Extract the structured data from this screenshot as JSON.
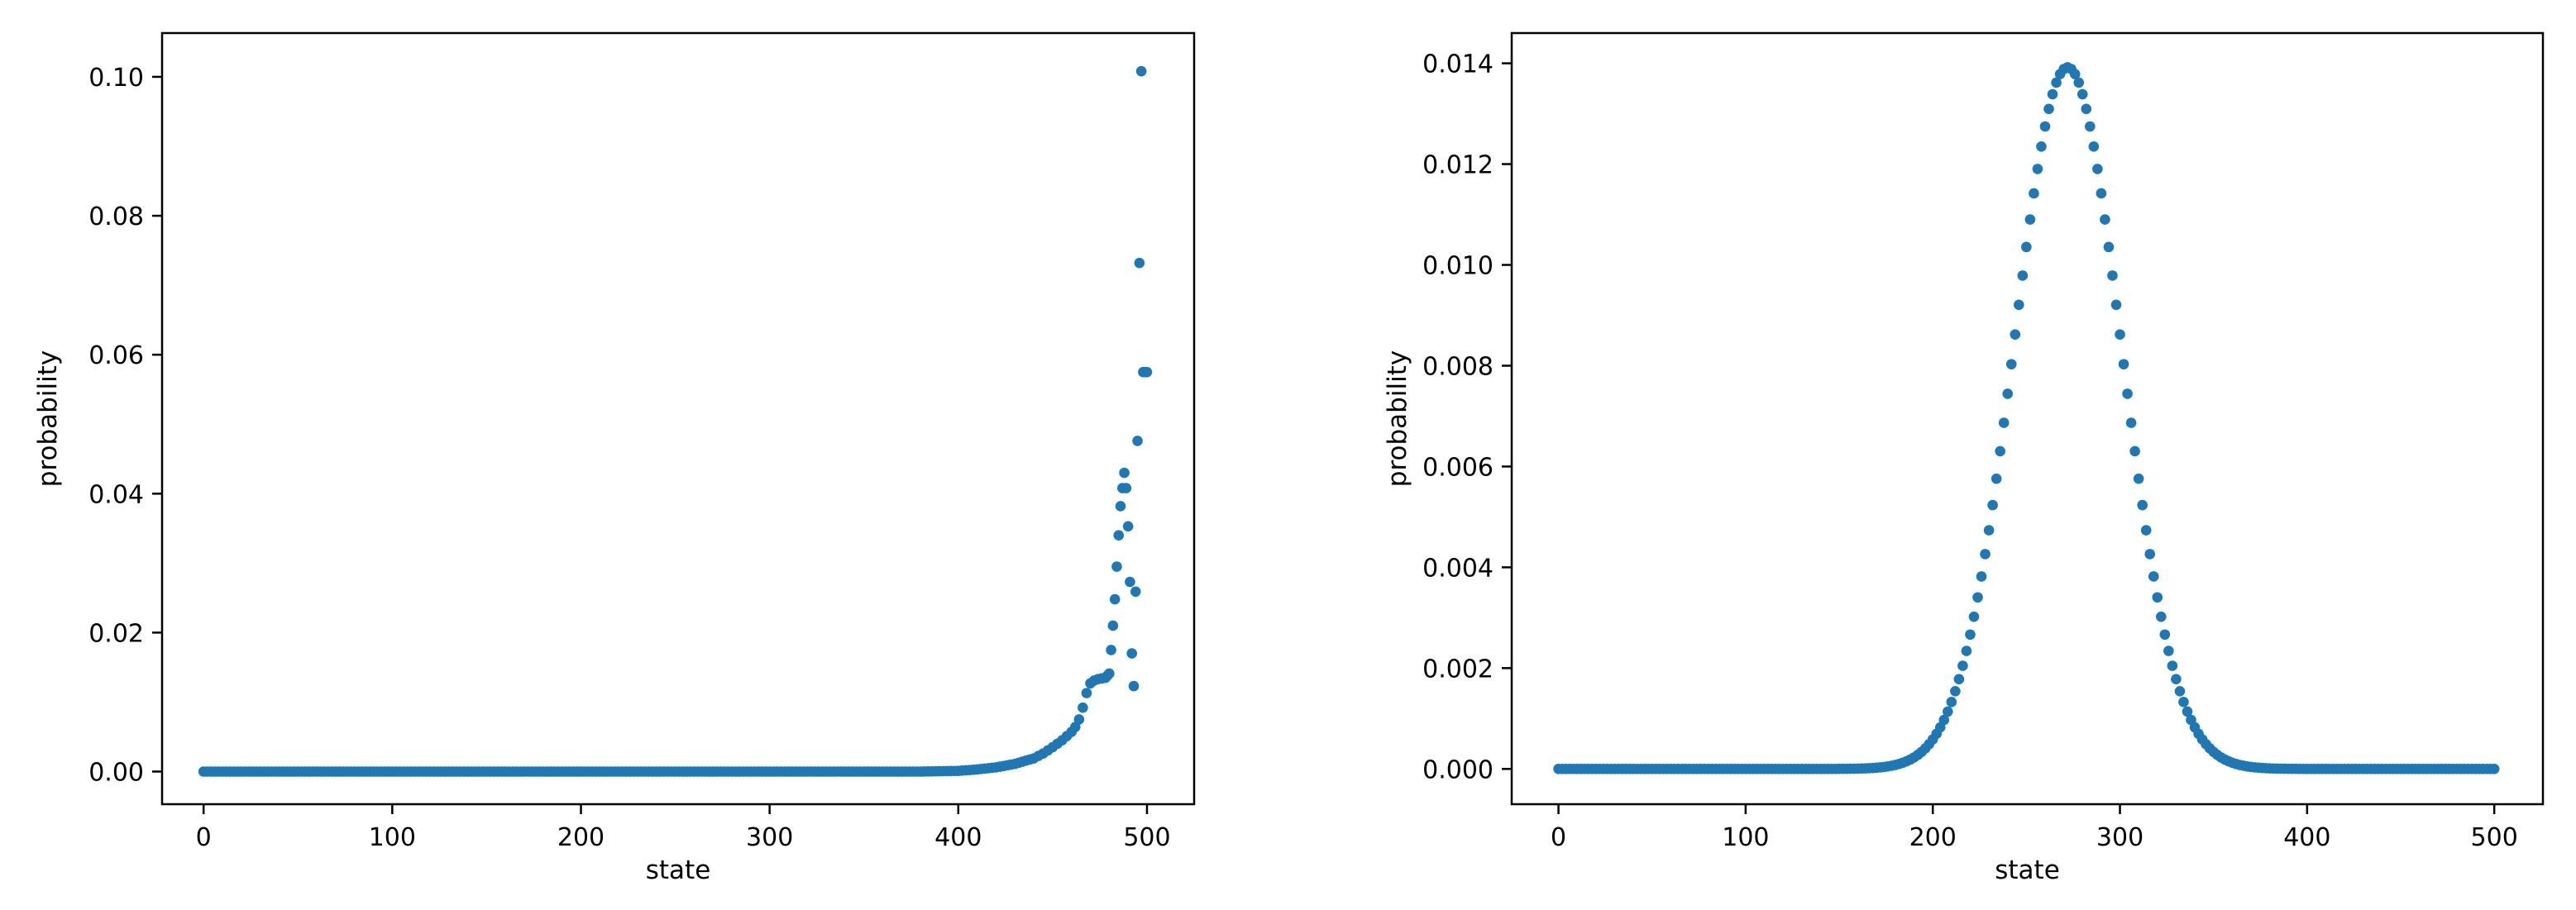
{
  "chart_data": [
    {
      "type": "scatter",
      "title": "",
      "xlabel": "state",
      "ylabel": "probability",
      "xlim": [
        -22,
        525
      ],
      "ylim": [
        -0.0047,
        0.1063
      ],
      "xticks": [
        0,
        100,
        200,
        300,
        400,
        500
      ],
      "xtick_labels": [
        "0",
        "100",
        "200",
        "300",
        "400",
        "500"
      ],
      "yticks": [
        0.0,
        0.02,
        0.04,
        0.06,
        0.08,
        0.1
      ],
      "ytick_labels": [
        "0.00",
        "0.02",
        "0.04",
        "0.06",
        "0.08",
        "0.10"
      ],
      "grid": false,
      "color": "#1f77b4",
      "series": [
        {
          "x": [
            0,
            50,
            100,
            150,
            200,
            250,
            300,
            350,
            380,
            400,
            410,
            420,
            430,
            440,
            445,
            450,
            455,
            460,
            462,
            464,
            466,
            468,
            470,
            472,
            474,
            476,
            478,
            479,
            480,
            481,
            482,
            483,
            484,
            485,
            486,
            487,
            488,
            489,
            490,
            491,
            492,
            493,
            494,
            495,
            496,
            497,
            498,
            499,
            500
          ],
          "y": [
            0.0,
            0.0,
            0.0,
            0.0,
            0.0,
            0.0,
            0.0,
            0.0,
            0.0,
            0.0001,
            0.0003,
            0.0006,
            0.0011,
            0.0019,
            0.0026,
            0.0035,
            0.0045,
            0.0057,
            0.0064,
            0.0075,
            0.0092,
            0.0113,
            0.0127,
            0.0131,
            0.0133,
            0.0134,
            0.0135,
            0.0138,
            0.0141,
            0.0175,
            0.021,
            0.0248,
            0.0295,
            0.034,
            0.0382,
            0.0408,
            0.043,
            0.0408,
            0.0353,
            0.0273,
            0.017,
            0.0123,
            0.0259,
            0.0476,
            0.0732,
            0.1008,
            0.0575,
            0.0575,
            0.0575
          ]
        }
      ]
    },
    {
      "type": "scatter",
      "title": "",
      "xlabel": "state",
      "ylabel": "probability",
      "xlim": [
        -25,
        526
      ],
      "ylim": [
        -0.0007,
        0.0146
      ],
      "xticks": [
        0,
        100,
        200,
        300,
        400,
        500
      ],
      "xtick_labels": [
        "0",
        "100",
        "200",
        "300",
        "400",
        "500"
      ],
      "yticks": [
        0.0,
        0.002,
        0.004,
        0.006,
        0.008,
        0.01,
        0.012,
        0.014
      ],
      "ytick_labels": [
        "0.000",
        "0.002",
        "0.004",
        "0.006",
        "0.008",
        "0.010",
        "0.012",
        "0.014"
      ],
      "grid": false,
      "color": "#1f77b4",
      "distribution": {
        "shape": "gaussian",
        "mean": 272,
        "sd": 28.6,
        "peak": 0.01392,
        "x_start": 0,
        "x_end": 500,
        "step": 2
      }
    }
  ]
}
